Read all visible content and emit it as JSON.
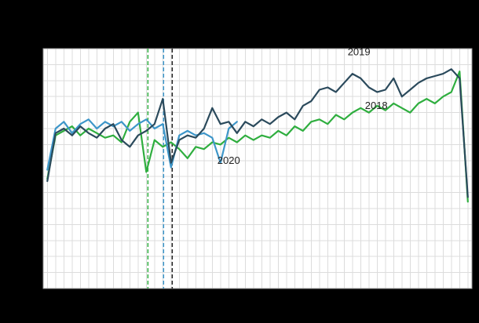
{
  "page": {
    "background": "#000000",
    "panel_background": "#ffffff",
    "grid_color": "#dcdcdc",
    "frame_color": "#9a9a9a"
  },
  "chart_data": {
    "type": "line",
    "title": "",
    "xlabel": "",
    "ylabel": "",
    "x_unit": "week",
    "xlim": [
      0.5,
      52.5
    ],
    "ylim": [
      0,
      105
    ],
    "grid": {
      "x_lines_every_week": 1,
      "y_divisions": 15,
      "visible": true
    },
    "legend_position": "none",
    "x": [
      1,
      2,
      3,
      4,
      5,
      6,
      7,
      8,
      9,
      10,
      11,
      12,
      13,
      14,
      15,
      16,
      17,
      18,
      19,
      20,
      21,
      22,
      23,
      24,
      25,
      26,
      27,
      28,
      29,
      30,
      31,
      32,
      33,
      34,
      35,
      36,
      37,
      38,
      39,
      40,
      41,
      42,
      43,
      44,
      45,
      46,
      47,
      48,
      49,
      50,
      51,
      52
    ],
    "series": [
      {
        "name": "2018",
        "color": "#2fae3f",
        "values": [
          48,
          67,
          69,
          71,
          67,
          70,
          68,
          66,
          67,
          64,
          73,
          77,
          51,
          65,
          62,
          64,
          61,
          57,
          62,
          61,
          64,
          63,
          66,
          64,
          67,
          65,
          67,
          66,
          69,
          67,
          71,
          69,
          73,
          74,
          72,
          76,
          74,
          77,
          79,
          77,
          80,
          78,
          81,
          79,
          77,
          81,
          83,
          81,
          84,
          86,
          95,
          38
        ]
      },
      {
        "name": "2020",
        "color": "#3d96c9",
        "values": [
          52,
          70,
          73,
          68,
          72,
          74,
          70,
          73,
          71,
          73,
          69,
          72,
          74,
          70,
          72,
          53,
          67,
          69,
          67,
          68,
          66,
          55,
          70,
          73
        ]
      },
      {
        "name": "2019",
        "color": "#2b4a5c",
        "values": [
          47,
          68,
          70,
          67,
          71,
          68,
          66,
          70,
          72,
          65,
          62,
          67,
          69,
          72,
          83,
          55,
          65,
          67,
          66,
          70,
          79,
          72,
          73,
          68,
          73,
          71,
          74,
          72,
          75,
          77,
          74,
          80,
          82,
          87,
          88,
          86,
          90,
          94,
          92,
          88,
          86,
          87,
          92,
          84,
          87,
          90,
          92,
          93,
          94,
          96,
          92,
          40
        ]
      }
    ],
    "vlines": [
      {
        "label": "easter-2018",
        "week": 13.2,
        "color": "#2fae3f",
        "style": "dashed"
      },
      {
        "label": "easter-2020",
        "week": 15.1,
        "color": "#3d96c9",
        "style": "dashed"
      },
      {
        "label": "easter-2019",
        "week": 16.15,
        "color": "#222222",
        "style": "dashed"
      }
    ],
    "annotations": [
      {
        "text": "2019",
        "week": 38.8,
        "value": 102.0,
        "color": "#222222"
      },
      {
        "text": "2018",
        "week": 40.9,
        "value": 78.5,
        "color": "#222222"
      },
      {
        "text": "2020",
        "week": 23.0,
        "value": 54.5,
        "color": "#222222"
      }
    ]
  }
}
